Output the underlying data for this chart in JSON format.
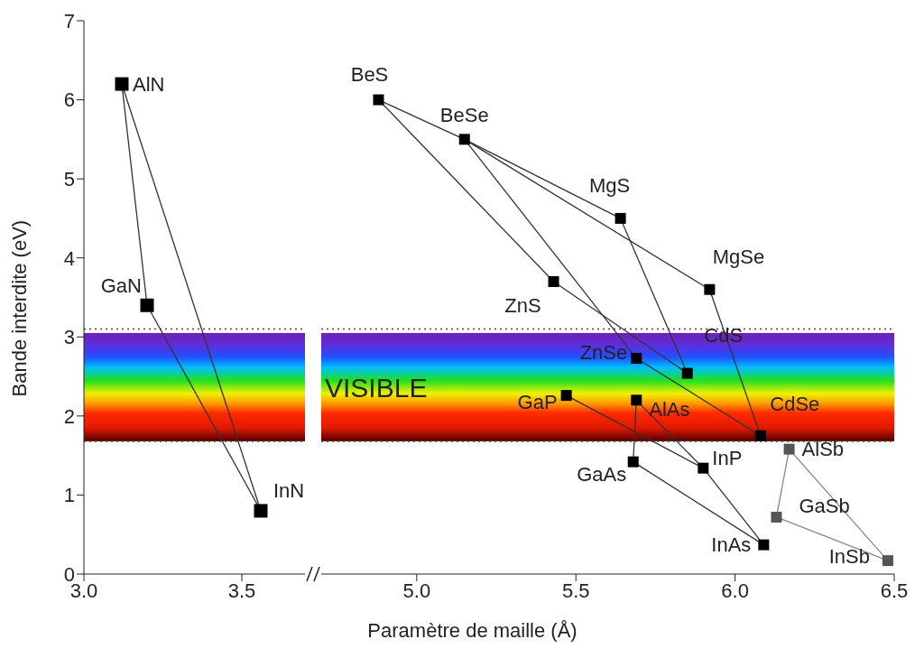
{
  "chart_data": [
    {
      "type": "scatter",
      "ylabel": "Bande interdite (eV)",
      "xlim": [
        3.0,
        3.7
      ],
      "xticks": [
        {
          "value": 3.0,
          "label": "3.0"
        },
        {
          "value": 3.5,
          "label": "3.5"
        }
      ],
      "ylim": [
        0,
        7
      ],
      "yticks": [
        0,
        1,
        2,
        3,
        4,
        5,
        6,
        7
      ],
      "bands": [
        {
          "axis": "y",
          "from": 1.68,
          "to": 3.05
        }
      ],
      "ref_lines": [
        {
          "axis": "y",
          "value": 3.1,
          "line_style": "dotted"
        },
        {
          "axis": "y",
          "value": 1.68,
          "line_style": "dotted"
        }
      ],
      "series": [
        {
          "type": "line",
          "x": [
            3.12,
            3.2
          ],
          "values": [
            6.2,
            3.4
          ],
          "color": "#333333"
        },
        {
          "type": "line",
          "x": [
            3.12,
            3.56
          ],
          "values": [
            6.2,
            0.8
          ],
          "color": "#333333"
        },
        {
          "type": "line",
          "x": [
            3.2,
            3.56
          ],
          "values": [
            3.4,
            0.8
          ],
          "color": "#333333"
        },
        {
          "marker": "square",
          "x": [
            3.12,
            3.2,
            3.56
          ],
          "values": [
            6.2,
            3.4,
            0.8
          ],
          "colors": [
            "#000000",
            "#000000",
            "#000000"
          ]
        }
      ],
      "annotations": [
        {
          "text": "AlN",
          "x": 3.12,
          "y": 6.2
        },
        {
          "text": "GaN",
          "x": 3.2,
          "y": 3.4
        },
        {
          "text": "InN",
          "x": 3.56,
          "y": 0.8
        }
      ]
    },
    {
      "type": "scatter",
      "xlabel": "Paramètre de maille (Å)",
      "xlim": [
        4.7,
        6.5
      ],
      "xticks": [
        {
          "value": 5.0,
          "label": "5.0"
        },
        5.5,
        {
          "value": 6.0,
          "label": "6.0"
        },
        6.5
      ],
      "ylim": [
        0,
        7
      ],
      "yticks": [
        0,
        1,
        2,
        3,
        4,
        5,
        6,
        7
      ],
      "tick_labels": "x",
      "bands": [
        {
          "axis": "y",
          "from": 1.68,
          "to": 3.05,
          "label": "VISIBLE"
        }
      ],
      "ref_lines": [
        {
          "axis": "y",
          "value": 3.1,
          "line_style": "dotted"
        },
        {
          "axis": "y",
          "value": 1.68,
          "line_style": "dotted"
        }
      ],
      "series": [
        {
          "type": "line",
          "x": [
            4.88,
            5.15
          ],
          "values": [
            6.0,
            5.5
          ],
          "color": "#333333"
        },
        {
          "type": "line",
          "x": [
            4.88,
            5.43
          ],
          "values": [
            6.0,
            3.7
          ],
          "color": "#333333"
        },
        {
          "type": "line",
          "x": [
            5.15,
            5.64
          ],
          "values": [
            5.5,
            4.5
          ],
          "color": "#333333"
        },
        {
          "type": "line",
          "x": [
            5.15,
            5.92
          ],
          "values": [
            5.5,
            3.6
          ],
          "color": "#333333"
        },
        {
          "type": "line",
          "x": [
            5.15,
            5.69
          ],
          "values": [
            5.5,
            2.73
          ],
          "color": "#333333"
        },
        {
          "type": "line",
          "x": [
            5.43,
            5.85
          ],
          "values": [
            3.7,
            2.54
          ],
          "color": "#333333"
        },
        {
          "type": "line",
          "x": [
            5.64,
            5.85
          ],
          "values": [
            4.5,
            2.54
          ],
          "color": "#333333"
        },
        {
          "type": "line",
          "x": [
            5.69,
            6.08
          ],
          "values": [
            2.73,
            1.75
          ],
          "color": "#333333"
        },
        {
          "type": "line",
          "x": [
            5.92,
            6.08
          ],
          "values": [
            3.6,
            1.75
          ],
          "color": "#333333"
        },
        {
          "type": "line",
          "x": [
            5.47,
            5.9
          ],
          "values": [
            2.26,
            1.34
          ],
          "color": "#333333"
        },
        {
          "type": "line",
          "x": [
            5.69,
            5.9
          ],
          "values": [
            2.2,
            1.34
          ],
          "color": "#333333"
        },
        {
          "type": "line",
          "x": [
            5.9,
            6.09
          ],
          "values": [
            1.34,
            0.37
          ],
          "color": "#333333"
        },
        {
          "type": "line",
          "x": [
            5.69,
            5.68
          ],
          "values": [
            2.2,
            1.42
          ],
          "color": "#333333"
        },
        {
          "type": "line",
          "x": [
            5.68,
            6.09
          ],
          "values": [
            1.42,
            0.37
          ],
          "color": "#333333"
        },
        {
          "type": "line",
          "x": [
            6.17,
            6.13
          ],
          "values": [
            1.58,
            0.72
          ],
          "color": "#888888"
        },
        {
          "type": "line",
          "x": [
            6.17,
            6.48
          ],
          "values": [
            1.58,
            0.17
          ],
          "color": "#888888"
        },
        {
          "type": "line",
          "x": [
            6.13,
            6.48
          ],
          "values": [
            0.72,
            0.17
          ],
          "color": "#888888"
        },
        {
          "marker": "square",
          "x": [
            4.88,
            5.15,
            5.64,
            5.92,
            5.43,
            5.69,
            5.85,
            6.08,
            5.47,
            5.69,
            6.17,
            5.68,
            5.9,
            6.13,
            6.09,
            6.48
          ],
          "values": [
            6.0,
            5.5,
            4.5,
            3.6,
            3.7,
            2.73,
            2.54,
            1.75,
            2.26,
            2.2,
            1.58,
            1.42,
            1.34,
            0.72,
            0.37,
            0.17
          ],
          "colors": [
            "#000000",
            "#000000",
            "#000000",
            "#000000",
            "#000000",
            "#000000",
            "#000000",
            "#000000",
            "#000000",
            "#000000",
            "#555555",
            "#000000",
            "#000000",
            "#555555",
            "#000000",
            "#555555"
          ]
        }
      ],
      "annotations": [
        {
          "text": "BeS",
          "x": 4.88,
          "y": 6.0
        },
        {
          "text": "BeSe",
          "x": 5.15,
          "y": 5.5
        },
        {
          "text": "MgS",
          "x": 5.64,
          "y": 4.5
        },
        {
          "text": "MgSe",
          "x": 5.92,
          "y": 3.6
        },
        {
          "text": "ZnS",
          "x": 5.43,
          "y": 3.7
        },
        {
          "text": "ZnSe",
          "x": 5.69,
          "y": 2.73
        },
        {
          "text": "CdS",
          "x": 5.85,
          "y": 2.54
        },
        {
          "text": "CdSe",
          "x": 6.08,
          "y": 1.75
        },
        {
          "text": "GaP",
          "x": 5.47,
          "y": 2.26
        },
        {
          "text": "AlAs",
          "x": 5.69,
          "y": 2.2
        },
        {
          "text": "AlSb",
          "x": 6.17,
          "y": 1.58
        },
        {
          "text": "GaAs",
          "x": 5.68,
          "y": 1.42
        },
        {
          "text": "InP",
          "x": 5.9,
          "y": 1.34
        },
        {
          "text": "GaSb",
          "x": 6.13,
          "y": 0.72
        },
        {
          "text": "InAs",
          "x": 6.09,
          "y": 0.37
        },
        {
          "text": "InSb",
          "x": 6.48,
          "y": 0.17
        }
      ]
    }
  ]
}
